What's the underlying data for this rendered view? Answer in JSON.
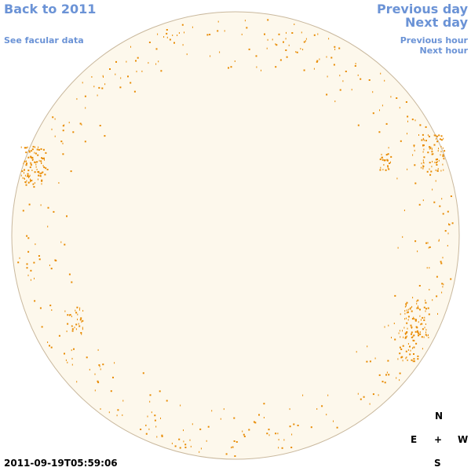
{
  "nav": {
    "back": "Back to 2011",
    "facular": "See facular data",
    "previous_day": "Previous day",
    "next_day": "Next day",
    "previous_hour": "Previous hour",
    "next_hour": "Next hour"
  },
  "compass": {
    "north": "N",
    "east": "E",
    "center": "+",
    "west": "W",
    "south": "S"
  },
  "timestamp": "2011-09-19T05:59:06"
}
